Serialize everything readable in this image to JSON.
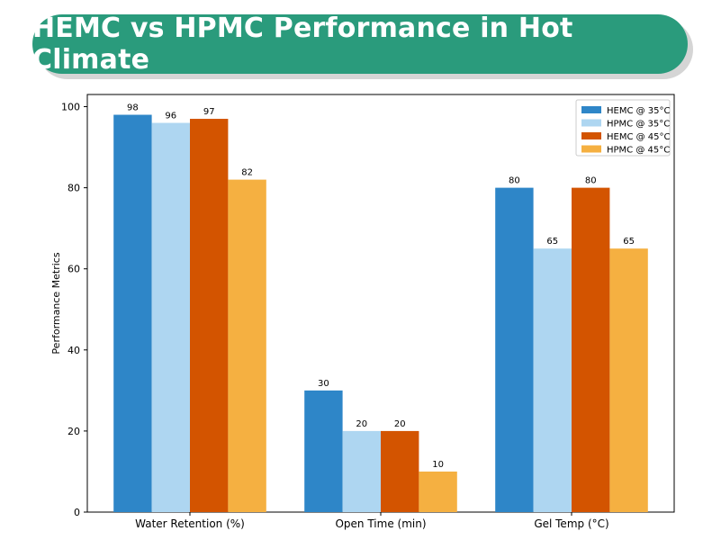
{
  "banner": {
    "title": "HEMC vs HPMC Performance in Hot Climate",
    "color": "#2a9b7c"
  },
  "chart_data": {
    "type": "bar",
    "title": "HEMC vs HPMC Performance in Hot Climate",
    "xlabel": "",
    "ylabel": "Performance Metrics",
    "categories": [
      "Water Retention (%)",
      "Open Time (min)",
      "Gel Temp (°C)"
    ],
    "series": [
      {
        "name": "HEMC @ 35°C",
        "values": [
          98,
          30,
          80
        ],
        "color": "#2e86c8"
      },
      {
        "name": "HPMC @ 35°C",
        "values": [
          96,
          20,
          65
        ],
        "color": "#aed6f1"
      },
      {
        "name": "HEMC @ 45°C",
        "values": [
          97,
          20,
          80
        ],
        "color": "#d35400"
      },
      {
        "name": "HPMC @ 45°C",
        "values": [
          82,
          10,
          65
        ],
        "color": "#f5b041"
      }
    ],
    "ylim": [
      0,
      103
    ],
    "yticks": [
      0,
      20,
      40,
      60,
      80,
      100
    ],
    "grid": false,
    "legend_position": "top-right",
    "data_labels": true
  }
}
